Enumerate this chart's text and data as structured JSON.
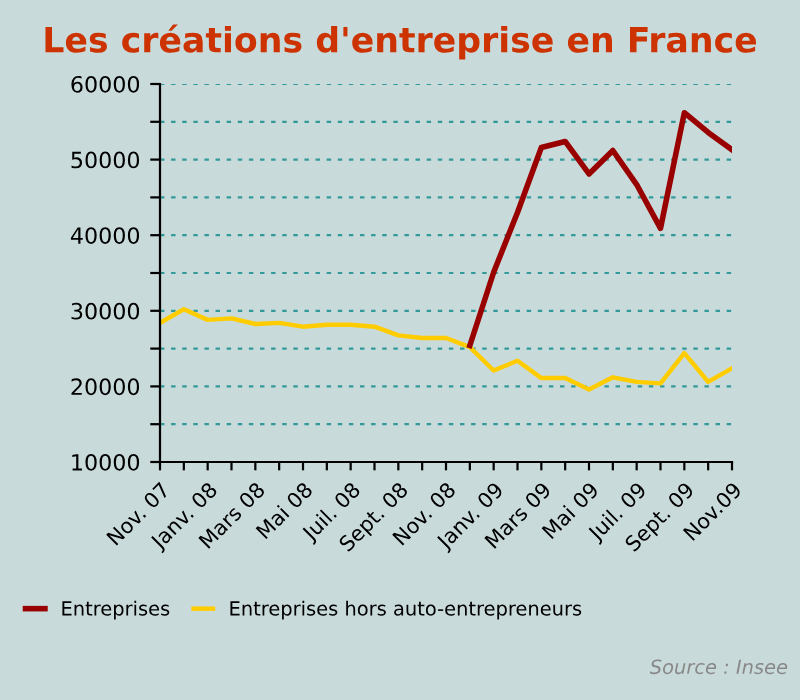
{
  "chart_data": {
    "type": "line",
    "title": "Les créations d'entreprise en France",
    "categories": [
      "Nov. 07",
      null,
      "Janv. 08",
      null,
      "Mars 08",
      null,
      "Mai 08",
      null,
      "Juil. 08",
      null,
      "Sept. 08",
      null,
      "Nov. 08",
      null,
      "Janv. 09",
      null,
      "Mars 09",
      null,
      "Mai 09",
      null,
      "Juil. 09",
      null,
      "Sept. 09",
      null,
      "Nov.09"
    ],
    "series": [
      {
        "name": "Entreprises",
        "color": "#990000",
        "values": [
          null,
          null,
          null,
          null,
          null,
          null,
          null,
          null,
          null,
          null,
          null,
          null,
          null,
          25400,
          35100,
          43000,
          51600,
          52400,
          48100,
          51200,
          46700,
          40900,
          56200,
          53600,
          51300
        ]
      },
      {
        "name": "Entreprises hors auto-entrepreneurs",
        "color": "#ffcc00",
        "values": [
          28400,
          30200,
          28800,
          29000,
          28250,
          28400,
          27900,
          28150,
          28150,
          27900,
          26750,
          26400,
          26400,
          25200,
          22100,
          23400,
          21100,
          21100,
          19600,
          21200,
          20600,
          20400,
          24400,
          20600,
          22400
        ]
      }
    ],
    "ylim": [
      10000,
      60000
    ],
    "yticks": [
      10000,
      {
        "value": 15000,
        "label": null
      },
      20000,
      {
        "value": 25000,
        "label": null
      },
      30000,
      {
        "value": 35000,
        "label": null
      },
      40000,
      {
        "value": 45000,
        "label": null
      },
      50000,
      {
        "value": 55000,
        "label": null
      },
      60000
    ],
    "grid": "y",
    "legend": "bottom",
    "line_style": "solid",
    "marker": "none",
    "annotations": [
      "Source : Insee"
    ]
  }
}
